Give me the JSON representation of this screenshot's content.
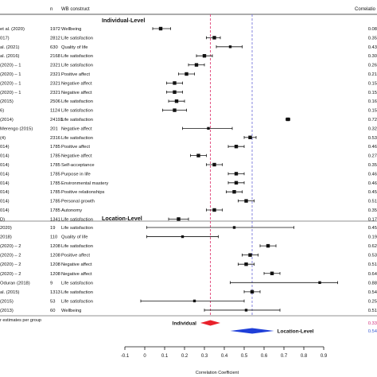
{
  "chart_data": {
    "type": "forest",
    "headers": {
      "n": "n",
      "construct": "WB construct",
      "estimate": "Correlatio"
    },
    "group_labels": {
      "individual": "Individual-Level",
      "location": "Location-Level"
    },
    "x_axis": {
      "label": "Correlation Coefficient",
      "min": -0.1,
      "max": 0.9,
      "ticks": [
        -0.1,
        0,
        0.1,
        0.2,
        0.3,
        0.4,
        0.5,
        0.6,
        0.7,
        0.8,
        0.9
      ],
      "tick_labels": [
        "-0.1",
        "0",
        "0.1",
        "0.2",
        "0.3",
        "0.4",
        "0.5",
        "0.6",
        "0.7",
        "0.8",
        "0.9"
      ]
    },
    "reference_lines": [
      {
        "name": "individual",
        "value": 0.33,
        "color": "#e0457a"
      },
      {
        "name": "location",
        "value": 0.54,
        "color": "#7b7bdc"
      }
    ],
    "summary": {
      "caption": "r estimates per group",
      "diamonds": [
        {
          "label": "Individual",
          "estimate": 0.33,
          "lower": 0.28,
          "upper": 0.38,
          "color": "#e8202a",
          "value_text": "0.33",
          "value_color": "#d0307a"
        },
        {
          "label": "Location-Level",
          "estimate": 0.54,
          "lower": 0.43,
          "upper": 0.65,
          "color": "#1f3fd8",
          "value_text": "0.54",
          "value_color": "#3b5bd0"
        }
      ]
    },
    "rows": [
      {
        "study": "et al. (2020)",
        "n": "1972",
        "construct": "Wellbeing",
        "estimate": 0.08,
        "lower": 0.04,
        "upper": 0.13,
        "value_text": "0.08",
        "group": "individual"
      },
      {
        "study": "017)",
        "n": "2812",
        "construct": "Life satisfaction",
        "estimate": 0.35,
        "lower": 0.31,
        "upper": 0.38,
        "value_text": "0.35",
        "group": "individual"
      },
      {
        "study": "al. (2021)",
        "n": "630",
        "construct": "Quality of life",
        "estimate": 0.43,
        "lower": 0.36,
        "upper": 0.49,
        "value_text": "0.43",
        "group": "individual"
      },
      {
        "study": "al. (2016)",
        "n": "2168",
        "construct": "Life satisfaction",
        "estimate": 0.3,
        "lower": 0.26,
        "upper": 0.34,
        "value_text": "0.30",
        "group": "individual"
      },
      {
        "study": "(2020) – 1",
        "n": "2321",
        "construct": "Life satisfaction",
        "estimate": 0.26,
        "lower": 0.22,
        "upper": 0.3,
        "value_text": "0.26",
        "group": "individual"
      },
      {
        "study": "(2020) – 1",
        "n": "2321",
        "construct": "Positive affect",
        "estimate": 0.21,
        "lower": 0.17,
        "upper": 0.25,
        "value_text": "0.21",
        "group": "individual"
      },
      {
        "study": "(2020) – 1",
        "n": "2321",
        "construct": "Negative affect",
        "estimate": 0.15,
        "lower": 0.11,
        "upper": 0.19,
        "value_text": "0.15",
        "group": "individual"
      },
      {
        "study": "(2020) – 1",
        "n": "2321",
        "construct": "Negative affect",
        "estimate": 0.15,
        "lower": 0.11,
        "upper": 0.19,
        "value_text": "0.15",
        "group": "individual"
      },
      {
        "study": "(2015)",
        "n": "2506",
        "construct": "Life satisfaction",
        "estimate": 0.16,
        "lower": 0.12,
        "upper": 0.2,
        "value_text": "0.16",
        "group": "individual"
      },
      {
        "study": "6)",
        "n": "1124",
        "construct": "Life satisfaction",
        "estimate": 0.15,
        "lower": 0.09,
        "upper": 0.21,
        "value_text": "0.15",
        "group": "individual"
      },
      {
        "study": "(2014)",
        "n": "24193",
        "construct": "Life satisfaction",
        "estimate": 0.72,
        "lower": 0.71,
        "upper": 0.73,
        "value_text": "0.72",
        "group": "individual"
      },
      {
        "study": "Merengo (2015)",
        "n": "201",
        "construct": "Negative affect",
        "estimate": 0.32,
        "lower": 0.19,
        "upper": 0.44,
        "value_text": "0.32",
        "group": "individual"
      },
      {
        "study": "(4)",
        "n": "2316",
        "construct": "Life satisfaction",
        "estimate": 0.53,
        "lower": 0.5,
        "upper": 0.56,
        "value_text": "0.53",
        "group": "individual"
      },
      {
        "study": "014)",
        "n": "1785",
        "construct": "Positive affect",
        "estimate": 0.46,
        "lower": 0.42,
        "upper": 0.5,
        "value_text": "0.46",
        "group": "individual"
      },
      {
        "study": "014)",
        "n": "1785",
        "construct": "Negative affect",
        "estimate": 0.27,
        "lower": 0.23,
        "upper": 0.31,
        "value_text": "0.27",
        "group": "individual"
      },
      {
        "study": "014)",
        "n": "1785",
        "construct": "Self-acceptance",
        "estimate": 0.35,
        "lower": 0.31,
        "upper": 0.39,
        "value_text": "0.35",
        "group": "individual"
      },
      {
        "study": "014)",
        "n": "1785",
        "construct": "Purpose in life",
        "estimate": 0.46,
        "lower": 0.42,
        "upper": 0.5,
        "value_text": "0.46",
        "group": "individual"
      },
      {
        "study": "014)",
        "n": "1785",
        "construct": "Environmental mastery",
        "estimate": 0.46,
        "lower": 0.42,
        "upper": 0.5,
        "value_text": "0.46",
        "group": "individual"
      },
      {
        "study": "014)",
        "n": "1785",
        "construct": "Positive relationships",
        "estimate": 0.45,
        "lower": 0.41,
        "upper": 0.49,
        "value_text": "0.45",
        "group": "individual"
      },
      {
        "study": "014)",
        "n": "1785",
        "construct": "Personal growth",
        "estimate": 0.51,
        "lower": 0.47,
        "upper": 0.55,
        "value_text": "0.51",
        "group": "individual"
      },
      {
        "study": "014)",
        "n": "1785",
        "construct": "Autonomy",
        "estimate": 0.35,
        "lower": 0.31,
        "upper": 0.39,
        "value_text": "0.35",
        "group": "individual"
      },
      {
        "study": "D)",
        "n": "1341",
        "construct": "Life satisfaction",
        "estimate": 0.17,
        "lower": 0.12,
        "upper": 0.22,
        "value_text": "0.17",
        "group": "individual"
      },
      {
        "study": "2020)",
        "n": "19",
        "construct": "Life satisfaction",
        "estimate": 0.45,
        "lower": 0.01,
        "upper": 0.75,
        "value_text": "0.45",
        "group": "location"
      },
      {
        "study": "2018)",
        "n": "110",
        "construct": "Quality of life",
        "estimate": 0.19,
        "lower": 0.01,
        "upper": 0.37,
        "value_text": "0.19",
        "group": "location"
      },
      {
        "study": "(2020) – 2",
        "n": "1208",
        "construct": "Life satisfaction",
        "estimate": 0.62,
        "lower": 0.58,
        "upper": 0.66,
        "value_text": "0.62",
        "group": "location"
      },
      {
        "study": "(2020) – 2",
        "n": "1208",
        "construct": "Positive affect",
        "estimate": 0.53,
        "lower": 0.49,
        "upper": 0.57,
        "value_text": "0.53",
        "group": "location"
      },
      {
        "study": "(2020) – 2",
        "n": "1208",
        "construct": "Negative affect",
        "estimate": 0.51,
        "lower": 0.47,
        "upper": 0.55,
        "value_text": "0.51",
        "group": "location"
      },
      {
        "study": "(2020) – 2",
        "n": "1208",
        "construct": "Negative affect",
        "estimate": 0.64,
        "lower": 0.6,
        "upper": 0.68,
        "value_text": "0.64",
        "group": "location"
      },
      {
        "study": "Oduran (2018)",
        "n": "9",
        "construct": "Life satisfaction",
        "estimate": 0.88,
        "lower": 0.43,
        "upper": 0.97,
        "value_text": "0.88",
        "group": "location"
      },
      {
        "study": "al. (2015)",
        "n": "1313",
        "construct": "Life satisfaction",
        "estimate": 0.54,
        "lower": 0.5,
        "upper": 0.58,
        "value_text": "0.54",
        "group": "location"
      },
      {
        "study": "(2015)",
        "n": "53",
        "construct": "Life satisfaction",
        "estimate": 0.25,
        "lower": -0.02,
        "upper": 0.5,
        "value_text": "0.25",
        "group": "location"
      },
      {
        "study": "(2013)",
        "n": "60",
        "construct": "Wellbeing",
        "estimate": 0.51,
        "lower": 0.3,
        "upper": 0.68,
        "value_text": "0.51",
        "group": "location"
      }
    ]
  }
}
